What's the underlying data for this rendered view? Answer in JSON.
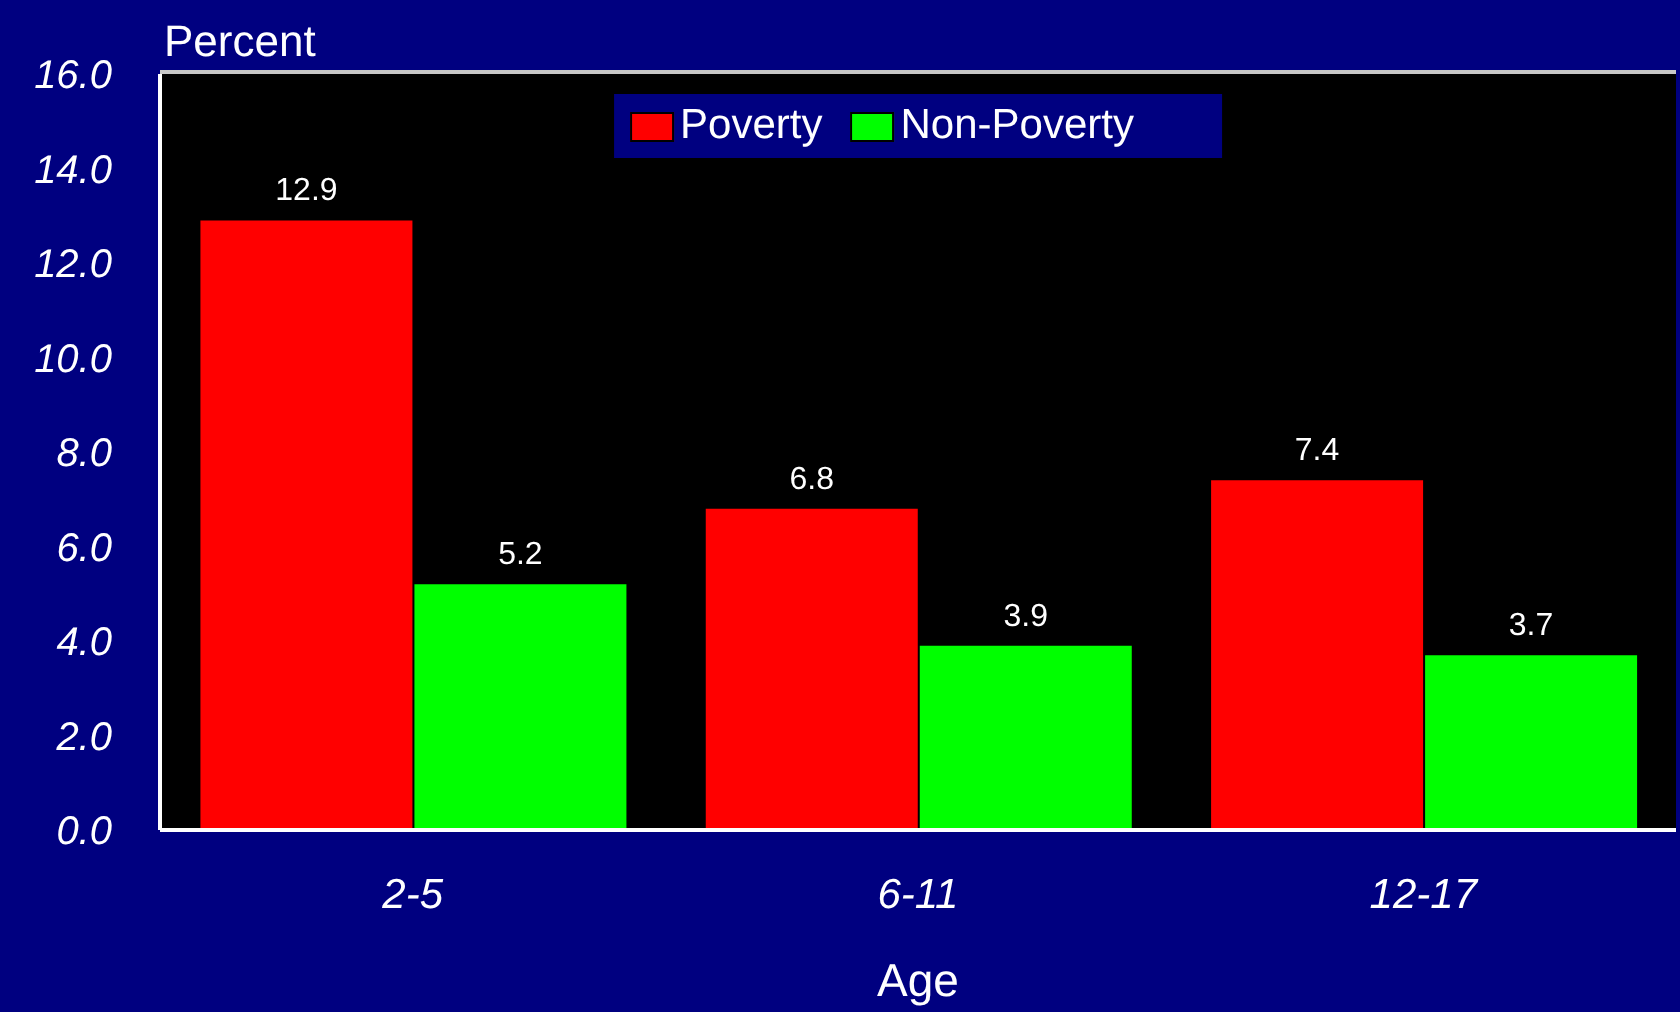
{
  "chart_data": {
    "type": "bar",
    "ylabel": "Percent",
    "xlabel": "Age",
    "categories": [
      "2-5",
      "6-11",
      "12-17"
    ],
    "series": [
      {
        "name": "Poverty",
        "color": "#ff0000",
        "values": [
          12.9,
          6.8,
          7.4
        ]
      },
      {
        "name": "Non-Poverty",
        "color": "#00ff00",
        "values": [
          5.2,
          3.9,
          3.7
        ]
      }
    ],
    "ylim": [
      0,
      16
    ],
    "yticks": [
      {
        "value": 0,
        "label": "0.0"
      },
      {
        "value": 2,
        "label": "2.0"
      },
      {
        "value": 4,
        "label": "4.0"
      },
      {
        "value": 6,
        "label": "6.0"
      },
      {
        "value": 8,
        "label": "8.0"
      },
      {
        "value": 10,
        "label": "10.0"
      },
      {
        "value": 12,
        "label": "12.0"
      },
      {
        "value": 14,
        "label": "14.0"
      },
      {
        "value": 16,
        "label": "16.0"
      }
    ],
    "data_labels": true,
    "legend": "top"
  }
}
